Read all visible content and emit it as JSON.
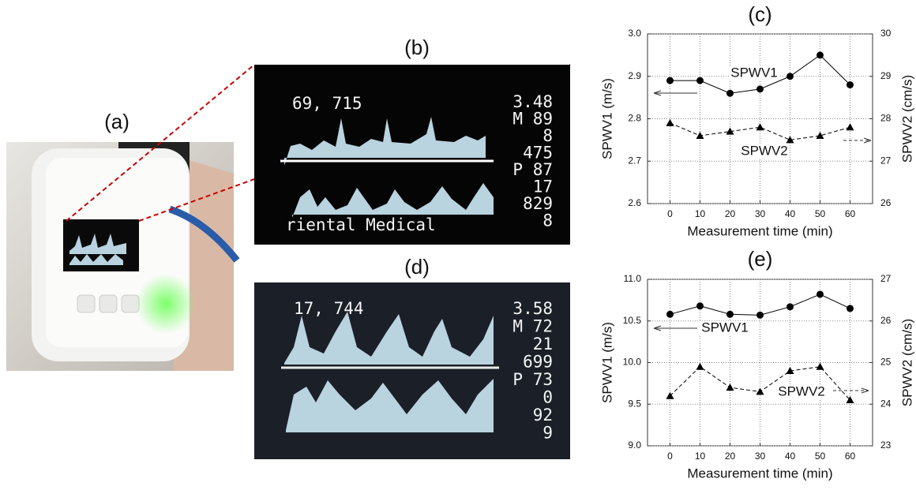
{
  "panels": {
    "a": {
      "label": "(a)"
    },
    "b": {
      "label": "(b)",
      "top_text": "69,  715",
      "side_text": [
        "3.48",
        "M 89",
        "8",
        "475",
        "P 87",
        "17",
        "829",
        "8"
      ],
      "bottom_text": "riental Medical"
    },
    "d": {
      "label": "(d)",
      "top_text": "17,  744",
      "side_text": [
        "3.58",
        "M 72",
        "21",
        "699",
        "P 73",
        "0",
        "92",
        "9"
      ]
    }
  },
  "chart_data": [
    {
      "type": "line",
      "title": "(c)",
      "x_label": "Measurement time (min)",
      "y_label": "SPWV1 (m/s)",
      "y2_label": "SPWV2 (cm/s)",
      "x": [
        0,
        10,
        20,
        30,
        40,
        50,
        60
      ],
      "xlim": [
        -7.5,
        67.5
      ],
      "xticks": [
        0,
        10,
        20,
        30,
        40,
        50,
        60
      ],
      "ylim": [
        2.6,
        3.0
      ],
      "yticks": [
        2.6,
        2.7,
        2.8,
        2.9,
        {
          "value": 3,
          "label": "3.0"
        }
      ],
      "y2lim": [
        26,
        30
      ],
      "y2ticks": [
        26,
        27,
        28,
        29,
        30
      ],
      "grid": true,
      "series": [
        {
          "name": "SPWV1",
          "color": "#000000",
          "marker": "circle",
          "dashed": false,
          "values": [
            2.89,
            2.89,
            2.86,
            2.87,
            2.9,
            2.95,
            2.88
          ]
        },
        {
          "name": "SPWV2",
          "color": "#000000",
          "marker": "triangle",
          "dashed": true,
          "axis": "y2",
          "values": [
            27.9,
            27.6,
            27.7,
            27.8,
            27.5,
            27.6,
            27.8
          ]
        }
      ]
    },
    {
      "type": "line",
      "title": "(e)",
      "x_label": "Measurement time (min)",
      "y_label": "SPWV1 (m/s)",
      "y2_label": "SPWV2 (cm/s)",
      "x": [
        0,
        10,
        20,
        30,
        40,
        50,
        60
      ],
      "xlim": [
        -7.5,
        67.5
      ],
      "xticks": [
        0,
        10,
        20,
        30,
        40,
        50,
        60
      ],
      "ylim": [
        9,
        11
      ],
      "yticks": [
        {
          "value": 9,
          "label": "9.0"
        },
        9.5,
        {
          "value": 10,
          "label": "10.0"
        },
        10.5,
        {
          "value": 11,
          "label": "11.0"
        }
      ],
      "y2lim": [
        23,
        27
      ],
      "y2ticks": [
        23,
        24,
        25,
        26,
        27
      ],
      "grid": true,
      "series": [
        {
          "name": "SPWV1",
          "color": "#000000",
          "marker": "circle",
          "dashed": false,
          "values": [
            10.58,
            10.68,
            10.58,
            10.57,
            10.67,
            10.82,
            10.65
          ]
        },
        {
          "name": "SPWV2",
          "color": "#000000",
          "marker": "triangle",
          "dashed": true,
          "axis": "y2",
          "values": [
            24.2,
            24.9,
            24.4,
            24.3,
            24.8,
            24.9,
            24.1
          ]
        }
      ]
    }
  ]
}
